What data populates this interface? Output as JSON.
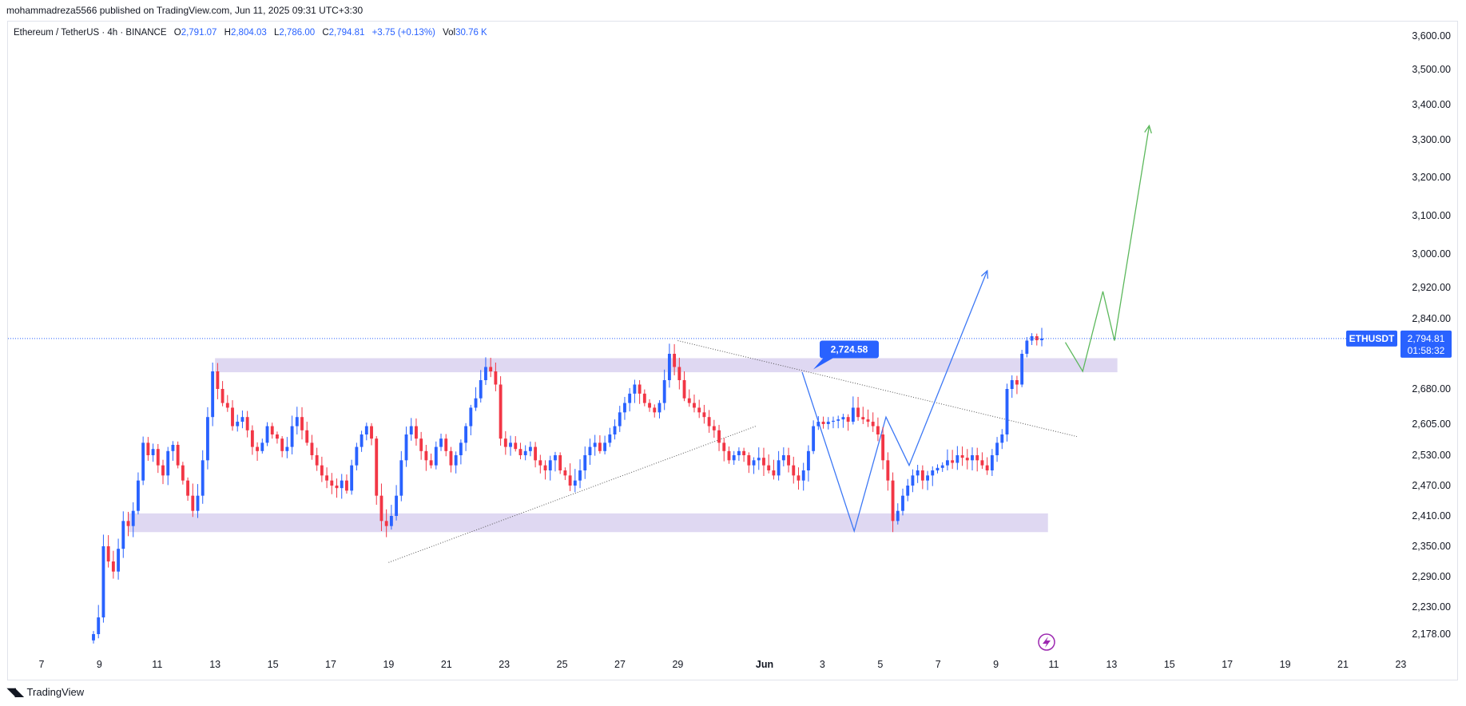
{
  "header": {
    "published_by": "mohammadreza5566 published on TradingView.com, Jun 11, 2025 09:31 UTC+3:30"
  },
  "legend": {
    "symbol": "Ethereum / TetherUS · 4h · BINANCE",
    "open_label": "O",
    "open": "2,791.07",
    "high_label": "H",
    "high": "2,804.03",
    "low_label": "L",
    "low": "2,786.00",
    "close_label": "C",
    "close": "2,794.81",
    "change": "+3.75 (+0.13%)",
    "vol_label": "Vol",
    "vol": "30.76 K"
  },
  "price_tag": {
    "symbol": "ETHUSDT",
    "price": "2,794.81",
    "countdown": "01:58:32"
  },
  "callout": {
    "label": "2,724.58",
    "value": 2724.58
  },
  "footer": {
    "brand": "TradingView"
  },
  "colors": {
    "up": "#2962ff",
    "down": "#f23645",
    "zone": "#d9d1f0",
    "projection_blue": "#3d78f5",
    "projection_green": "#5cb85c",
    "accent": "#2962ff"
  },
  "chart_data": {
    "type": "candlestick",
    "title": "Ethereum / TetherUS · 4h · BINANCE",
    "price_axis_ticks": [
      3600,
      3500,
      3400,
      3300,
      3200,
      3100,
      3000,
      2920,
      2840,
      2680,
      2605,
      2530,
      2470,
      2410,
      2350,
      2290,
      2230,
      2178
    ],
    "price_axis_labels": [
      "3,600.00",
      "3,500.00",
      "3,400.00",
      "3,300.00",
      "3,200.00",
      "3,100.00",
      "3,000.00",
      "2,920.00",
      "2,840.00",
      "2,680.00",
      "2,605.00",
      "2,530.00",
      "2,470.00",
      "2,410.00",
      "2,350.00",
      "2,290.00",
      "2,230.00",
      "2,178.00"
    ],
    "time_axis_labels": [
      "7",
      "9",
      "11",
      "13",
      "15",
      "17",
      "19",
      "21",
      "23",
      "25",
      "27",
      "29",
      "Jun",
      "3",
      "5",
      "7",
      "9",
      "11",
      "13",
      "15",
      "17",
      "19",
      "21",
      "23"
    ],
    "time_axis_day_index": [
      0,
      2,
      4,
      6,
      8,
      10,
      12,
      14,
      16,
      18,
      20,
      22,
      25,
      27,
      29,
      31,
      33,
      35,
      37,
      39,
      41,
      43,
      45,
      47
    ],
    "last_price": 2794.81,
    "zones": [
      {
        "name": "resistance",
        "from_day": 6,
        "to_day": 37.2,
        "low": 2718,
        "high": 2750
      },
      {
        "name": "support",
        "from_day": 3,
        "to_day": 34.8,
        "low": 2378,
        "high": 2415
      }
    ],
    "trendlines": [
      {
        "name": "descending",
        "points": [
          [
            22.0,
            2790
          ],
          [
            35.8,
            2575
          ]
        ]
      },
      {
        "name": "ascending",
        "points": [
          [
            12.0,
            2318
          ],
          [
            24.7,
            2600
          ]
        ]
      }
    ],
    "projection_blue": [
      [
        26.3,
        2718
      ],
      [
        28.1,
        2380
      ],
      [
        29.2,
        2620
      ],
      [
        30.0,
        2510
      ],
      [
        32.7,
        2960
      ]
    ],
    "projection_green": [
      [
        35.4,
        2786
      ],
      [
        36.0,
        2720
      ],
      [
        36.7,
        2910
      ],
      [
        37.1,
        2790
      ],
      [
        38.3,
        3340
      ]
    ],
    "close_series": [
      2178,
      2210,
      2350,
      2320,
      2300,
      2345,
      2400,
      2390,
      2420,
      2480,
      2560,
      2530,
      2545,
      2510,
      2490,
      2540,
      2555,
      2510,
      2480,
      2450,
      2420,
      2450,
      2520,
      2620,
      2720,
      2680,
      2650,
      2640,
      2600,
      2610,
      2620,
      2590,
      2550,
      2540,
      2560,
      2600,
      2580,
      2570,
      2540,
      2550,
      2600,
      2620,
      2590,
      2560,
      2530,
      2510,
      2490,
      2480,
      2470,
      2465,
      2480,
      2460,
      2510,
      2550,
      2580,
      2600,
      2570,
      2450,
      2400,
      2390,
      2410,
      2450,
      2520,
      2580,
      2600,
      2570,
      2540,
      2520,
      2510,
      2550,
      2570,
      2540,
      2510,
      2530,
      2560,
      2600,
      2640,
      2660,
      2700,
      2730,
      2720,
      2690,
      2570,
      2550,
      2560,
      2545,
      2530,
      2540,
      2550,
      2520,
      2510,
      2500,
      2520,
      2530,
      2500,
      2490,
      2470,
      2480,
      2500,
      2530,
      2550,
      2560,
      2540,
      2560,
      2580,
      2600,
      2630,
      2650,
      2670,
      2690,
      2670,
      2650,
      2640,
      2630,
      2650,
      2700,
      2760,
      2730,
      2700,
      2660,
      2650,
      2640,
      2630,
      2620,
      2600,
      2590,
      2560,
      2540,
      2520,
      2530,
      2540,
      2530,
      2510,
      2520,
      2525,
      2510,
      2500,
      2490,
      2520,
      2530,
      2510,
      2490,
      2480,
      2500,
      2540,
      2600,
      2610,
      2605,
      2610,
      2612,
      2615,
      2620,
      2610,
      2640,
      2620,
      2615,
      2610,
      2600,
      2580,
      2520,
      2480,
      2400,
      2420,
      2450,
      2470,
      2490,
      2500,
      2480,
      2490,
      2500,
      2505,
      2510,
      2520,
      2515,
      2530,
      2525,
      2520,
      2530,
      2520,
      2510,
      2500,
      2530,
      2560,
      2580,
      2680,
      2700,
      2690,
      2760,
      2790,
      2800,
      2791,
      2795
    ]
  }
}
